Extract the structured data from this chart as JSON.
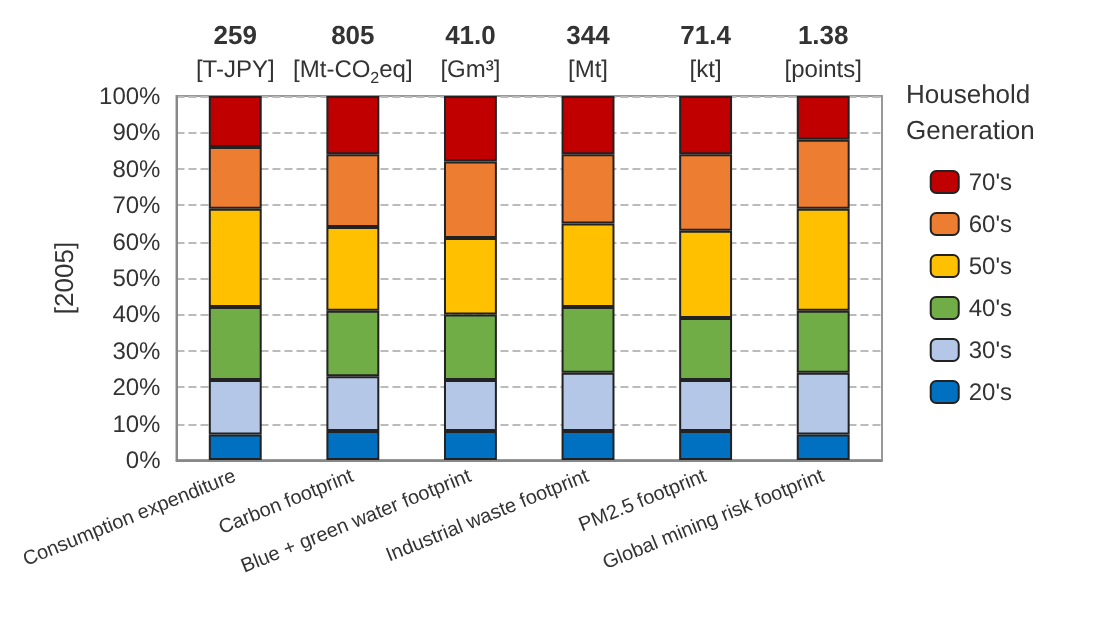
{
  "chart_data": {
    "type": "bar",
    "stacked": true,
    "ylabel": "[2005]",
    "legend_title": "Household Generation",
    "legend": "right",
    "grid": "y",
    "categories": [
      "Consumption expenditure",
      "Carbon footprint",
      "Blue + green water footprint",
      "Industrial waste footprint",
      "PM2.5 footprint",
      "Global mining risk footprint"
    ],
    "series": [
      {
        "name": "20's",
        "color": "#0070c0",
        "values": [
          7,
          8,
          8,
          8,
          8,
          7
        ]
      },
      {
        "name": "30's",
        "color": "#b4c7e7",
        "values": [
          15,
          15,
          14,
          16,
          14,
          17
        ]
      },
      {
        "name": "40's",
        "color": "#70ad47",
        "values": [
          20,
          18,
          18,
          18,
          17,
          17
        ]
      },
      {
        "name": "50's",
        "color": "#ffc000",
        "values": [
          27,
          23,
          21,
          23,
          24,
          28
        ]
      },
      {
        "name": "60's",
        "color": "#ed7d31",
        "values": [
          17,
          20,
          21,
          19,
          21,
          19
        ]
      },
      {
        "name": "70's",
        "color": "#c00000",
        "values": [
          14,
          16,
          18,
          16,
          16,
          12
        ]
      }
    ],
    "ylim": [
      0,
      100
    ],
    "yticks": [
      {
        "value": 0,
        "label": "0%"
      },
      {
        "value": 10,
        "label": "10%"
      },
      {
        "value": 20,
        "label": "20%"
      },
      {
        "value": 30,
        "label": "30%"
      },
      {
        "value": 40,
        "label": "40%"
      },
      {
        "value": 50,
        "label": "50%"
      },
      {
        "value": 60,
        "label": "60%"
      },
      {
        "value": 70,
        "label": "70%"
      },
      {
        "value": 80,
        "label": "80%"
      },
      {
        "value": 90,
        "label": "90%"
      },
      {
        "value": 100,
        "label": "100%"
      }
    ],
    "annotations": [
      "259\n[T-JPY]",
      "805\n[Mt-CO$_{2}$eq]",
      "41.0\n[Gm³]",
      "344\n[Mt]",
      "71.4\n[kt]",
      "1.38\n[points]"
    ]
  }
}
